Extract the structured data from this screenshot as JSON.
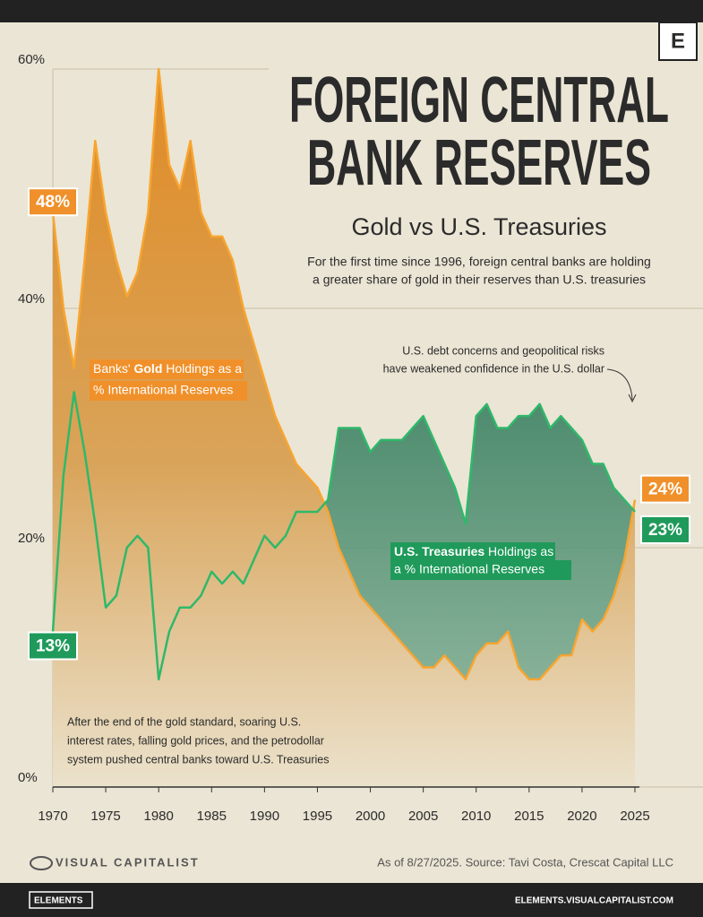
{
  "chart_data": {
    "type": "line",
    "title": [
      "FOREIGN CENTRAL",
      "BANK RESERVES"
    ],
    "subtitle": "Gold vs U.S. Treasuries",
    "description": [
      "For the first time since 1996, foreign central banks are holding",
      "a greater share of gold in their reserves than U.S. treasuries"
    ],
    "annotations": [
      {
        "lines": [
          "U.S. debt concerns and geopolitical risks",
          "have weakened confidence in the U.S. dollar"
        ]
      },
      {
        "lines": [
          "After the end of the gold standard, soaring U.S.",
          "interest rates, falling gold prices, and the petrodollar",
          "system pushed central banks toward U.S. Treasuries"
        ]
      }
    ],
    "x": [
      1970,
      1971,
      1972,
      1973,
      1974,
      1975,
      1976,
      1977,
      1978,
      1979,
      1980,
      1981,
      1982,
      1983,
      1984,
      1985,
      1986,
      1987,
      1988,
      1989,
      1990,
      1991,
      1992,
      1993,
      1994,
      1995,
      1996,
      1997,
      1998,
      1999,
      2000,
      2001,
      2002,
      2003,
      2004,
      2005,
      2006,
      2007,
      2008,
      2009,
      2010,
      2011,
      2012,
      2013,
      2014,
      2015,
      2016,
      2017,
      2018,
      2019,
      2020,
      2021,
      2022,
      2023,
      2024,
      2025
    ],
    "series": [
      {
        "name": "Gold",
        "label_pre": "Banks' ",
        "label_post": " Holdings as a",
        "label_line2": "% International Reserves",
        "color": "#f7a530",
        "values": [
          48,
          40,
          35,
          44,
          54,
          48,
          44,
          41,
          43,
          48,
          60,
          52,
          50,
          54,
          48,
          46,
          46,
          44,
          40,
          37,
          34,
          31,
          29,
          27,
          26,
          25,
          23,
          20,
          18,
          16,
          15,
          14,
          13,
          12,
          11,
          10,
          10,
          11,
          10,
          9,
          11,
          12,
          12,
          13,
          10,
          9,
          9,
          10,
          11,
          11,
          14,
          13,
          14,
          16,
          19,
          24
        ],
        "value_labels": [
          "48%",
          null,
          null,
          null,
          null,
          null,
          null,
          null,
          null,
          null,
          null,
          null,
          null,
          null,
          null,
          null,
          null,
          null,
          null,
          null,
          null,
          null,
          null,
          null,
          null,
          null,
          null,
          null,
          null,
          null,
          null,
          null,
          null,
          null,
          null,
          null,
          null,
          null,
          null,
          null,
          null,
          null,
          null,
          null,
          null,
          null,
          null,
          null,
          null,
          null,
          null,
          null,
          null,
          null,
          null,
          "24%"
        ]
      },
      {
        "name": "U.S. Treasuries",
        "label_pre": "",
        "label_post": " Holdings as",
        "label_line2": "a % International Reserves",
        "color": "#2fb86a",
        "values": [
          13,
          26,
          33,
          28,
          22,
          15,
          16,
          20,
          21,
          20,
          9,
          13,
          15,
          15,
          16,
          18,
          17,
          18,
          17,
          19,
          21,
          20,
          21,
          23,
          23,
          23,
          24,
          30,
          30,
          30,
          28,
          29,
          29,
          29,
          30,
          31,
          29,
          27,
          25,
          22,
          31,
          32,
          30,
          30,
          31,
          31,
          32,
          30,
          31,
          30,
          29,
          27,
          27,
          25,
          24,
          23
        ],
        "value_labels": [
          "13%",
          null,
          null,
          null,
          null,
          null,
          null,
          null,
          null,
          null,
          null,
          null,
          null,
          null,
          null,
          null,
          null,
          null,
          null,
          null,
          null,
          null,
          null,
          null,
          null,
          null,
          null,
          null,
          null,
          null,
          null,
          null,
          null,
          null,
          null,
          null,
          null,
          null,
          null,
          null,
          null,
          null,
          null,
          null,
          null,
          null,
          null,
          null,
          null,
          null,
          null,
          null,
          null,
          null,
          null,
          "23%"
        ]
      }
    ],
    "xlim": [
      1970,
      2025
    ],
    "xticks": [
      1970,
      1975,
      1980,
      1985,
      1990,
      1995,
      2000,
      2005,
      2010,
      2015,
      2020,
      2025
    ],
    "ylim": [
      0,
      60
    ],
    "yticks": [
      {
        "value": 0,
        "label": "0%"
      },
      {
        "value": 20,
        "label": "20%"
      },
      {
        "value": 40,
        "label": "40%"
      },
      {
        "value": 60,
        "label": "60%"
      }
    ],
    "grid": true,
    "brand": "VISUAL CAPITALIST",
    "source": "As of 8/27/2025. Source: Tavi Costa, Crescat Capital LLC",
    "badge": "E",
    "footer_left": "ELEMENTS",
    "footer_right": "ELEMENTS.VISUALCAPITALIST.COM"
  }
}
